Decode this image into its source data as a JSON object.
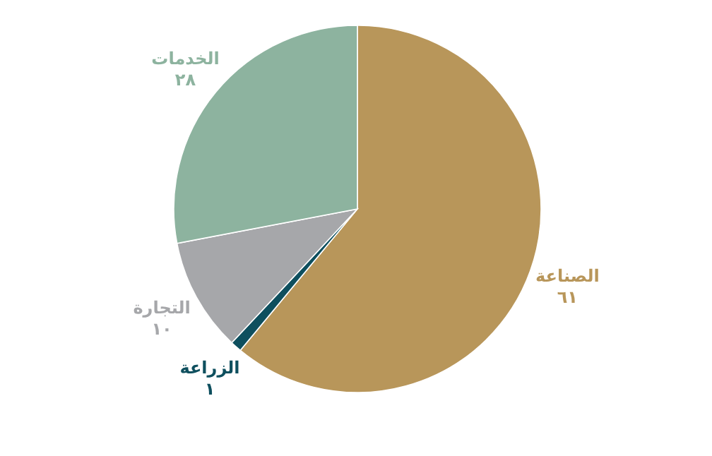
{
  "chart_data": {
    "type": "pie",
    "categories": [
      "الصناعة",
      "الزراعة",
      "التجارة",
      "الخدمات"
    ],
    "values": [
      61,
      1,
      10,
      28
    ],
    "value_labels": [
      "٦١",
      "١",
      "١٠",
      "٢٨"
    ],
    "colors": [
      "#b8965a",
      "#0e4f5e",
      "#a6a7aa",
      "#8db39f"
    ]
  }
}
